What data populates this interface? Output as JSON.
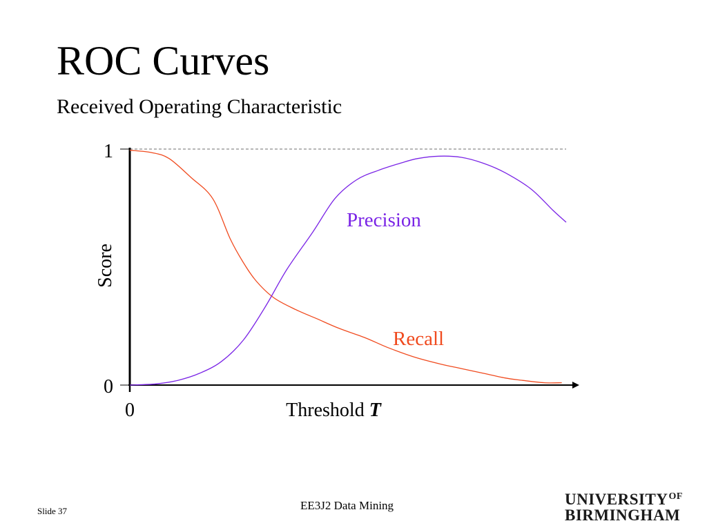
{
  "slide": {
    "title": "ROC Curves",
    "subtitle": "Received Operating Characteristic",
    "footer_slide": "Slide 37",
    "footer_course": "EE3J2 Data Mining",
    "logo_line1": "UNIVERSITY",
    "logo_of": "OF",
    "logo_line2": "BIRMINGHAM"
  },
  "chart_data": {
    "type": "line",
    "ylabel": "Score",
    "xlabel": "Threshold",
    "xlabel_symbol": "T",
    "yticks": [
      "0",
      "1"
    ],
    "xticks": [
      "0"
    ],
    "ylim": [
      0,
      1
    ],
    "xlim": [
      0,
      1.03
    ],
    "reference_line": {
      "y": 1,
      "style": "dashed"
    },
    "colors": {
      "precision": "#7a24e6",
      "recall": "#f04a1e"
    },
    "series": [
      {
        "name": "Precision",
        "x": [
          0,
          0.06,
          0.11,
          0.16,
          0.21,
          0.26,
          0.31,
          0.36,
          0.42,
          0.47,
          0.52,
          0.57,
          0.62,
          0.66,
          0.71,
          0.76,
          0.81,
          0.86,
          0.92,
          0.97,
          1.0
        ],
        "values": [
          0.0,
          0.005,
          0.02,
          0.05,
          0.1,
          0.19,
          0.33,
          0.49,
          0.65,
          0.79,
          0.87,
          0.91,
          0.94,
          0.96,
          0.97,
          0.965,
          0.94,
          0.9,
          0.83,
          0.74,
          0.69
        ]
      },
      {
        "name": "Recall",
        "x": [
          0,
          0.05,
          0.09,
          0.14,
          0.19,
          0.23,
          0.26,
          0.29,
          0.33,
          0.38,
          0.43,
          0.48,
          0.54,
          0.59,
          0.65,
          0.71,
          0.76,
          0.81,
          0.86,
          0.9,
          0.95,
          0.99
        ],
        "values": [
          0.995,
          0.985,
          0.96,
          0.88,
          0.79,
          0.62,
          0.52,
          0.44,
          0.37,
          0.32,
          0.28,
          0.24,
          0.2,
          0.16,
          0.12,
          0.09,
          0.07,
          0.05,
          0.03,
          0.02,
          0.01,
          0.01
        ]
      }
    ]
  }
}
